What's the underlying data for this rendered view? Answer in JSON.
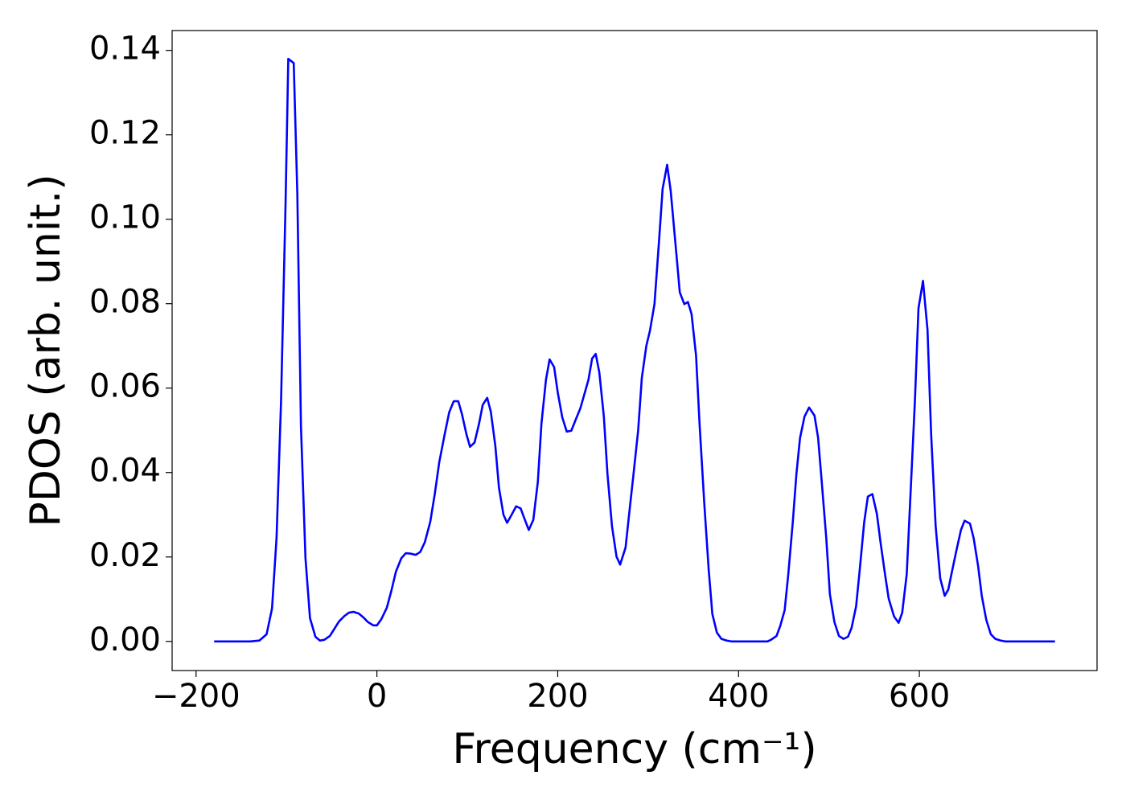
{
  "chart_data": {
    "type": "line",
    "xlabel": "Frequency (cm⁻¹)",
    "ylabel": "PDOS (arb. unit.)",
    "color": "#0000ff",
    "xlim": [
      -226.5,
      796.5
    ],
    "ylim": [
      -0.0069,
      0.1447
    ],
    "xticks": [
      {
        "value": -200,
        "label": "−200"
      },
      0,
      200,
      400,
      600
    ],
    "yticks": [
      {
        "value": 0,
        "label": "0.00"
      },
      {
        "value": 0.02,
        "label": "0.02"
      },
      {
        "value": 0.04,
        "label": "0.04"
      },
      {
        "value": 0.06,
        "label": "0.06"
      },
      {
        "value": 0.08,
        "label": "0.08"
      },
      {
        "value": 0.1,
        "label": "0.10"
      },
      {
        "value": 0.12,
        "label": "0.12"
      },
      {
        "value": 0.14,
        "label": "0.14"
      }
    ],
    "grid": false,
    "x": [
      -180,
      -170,
      -160,
      -150,
      -140,
      -130,
      -122,
      -116,
      -111,
      -106,
      -101,
      -98,
      -92,
      -88,
      -84,
      -79,
      -74,
      -68,
      -63,
      -58,
      -52,
      -47,
      -42,
      -36,
      -31,
      -26,
      -20,
      -15,
      -10,
      -4,
      0,
      5,
      11,
      16,
      21,
      27,
      32,
      37,
      43,
      48,
      53,
      59,
      64,
      69,
      75,
      80,
      85,
      90,
      94,
      99,
      103,
      108,
      113,
      117,
      122,
      126,
      131,
      135,
      140,
      144,
      149,
      154,
      159,
      164,
      168,
      173,
      178,
      182,
      187,
      191,
      196,
      200,
      205,
      210,
      215,
      220,
      225,
      229,
      234,
      238,
      242,
      246,
      251,
      255,
      260,
      265,
      269,
      275,
      279,
      284,
      289,
      293,
      298,
      302,
      307,
      312,
      316,
      321,
      325,
      330,
      335,
      340,
      344,
      348,
      353,
      357,
      362,
      367,
      371,
      376,
      381,
      387,
      392,
      410,
      432,
      436,
      442,
      446,
      451,
      455,
      460,
      464,
      468,
      473,
      478,
      484,
      488,
      492,
      497,
      501,
      506,
      511,
      516,
      521,
      525,
      530,
      534,
      539,
      543,
      548,
      553,
      557,
      562,
      566,
      572,
      577,
      581,
      586,
      590,
      595,
      599,
      604,
      609,
      613,
      618,
      623,
      628,
      632,
      636,
      641,
      646,
      650,
      656,
      660,
      665,
      669,
      674,
      679,
      684,
      690,
      695,
      720,
      750
    ],
    "values": [
      0,
      0,
      0,
      0,
      0,
      0.0002,
      0.0017,
      0.0078,
      0.0245,
      0.057,
      0.104,
      0.138,
      0.137,
      0.106,
      0.051,
      0.0197,
      0.0055,
      0.0011,
      0.0002,
      0.0004,
      0.0013,
      0.003,
      0.0047,
      0.006,
      0.0068,
      0.007,
      0.0066,
      0.0057,
      0.0046,
      0.0038,
      0.0038,
      0.0053,
      0.008,
      0.012,
      0.0165,
      0.0197,
      0.0209,
      0.0208,
      0.0205,
      0.0212,
      0.0235,
      0.0283,
      0.0349,
      0.0425,
      0.0491,
      0.0543,
      0.0569,
      0.0569,
      0.0539,
      0.0491,
      0.0461,
      0.0471,
      0.0516,
      0.056,
      0.0577,
      0.0544,
      0.0463,
      0.0364,
      0.03,
      0.0281,
      0.03,
      0.032,
      0.0315,
      0.0286,
      0.0264,
      0.0288,
      0.0378,
      0.0516,
      0.062,
      0.0668,
      0.065,
      0.059,
      0.0531,
      0.0497,
      0.0499,
      0.0526,
      0.0552,
      0.0582,
      0.062,
      0.067,
      0.0681,
      0.0637,
      0.0533,
      0.0397,
      0.0273,
      0.0201,
      0.0182,
      0.0222,
      0.0302,
      0.04,
      0.0501,
      0.0624,
      0.07,
      0.0736,
      0.0799,
      0.0947,
      0.1072,
      0.1129,
      0.1066,
      0.0947,
      0.0827,
      0.0799,
      0.0804,
      0.0776,
      0.0677,
      0.051,
      0.033,
      0.0169,
      0.0065,
      0.0021,
      0.0006,
      0.0002,
      0,
      0,
      0,
      0.0004,
      0.0013,
      0.0036,
      0.0074,
      0.0159,
      0.0283,
      0.0397,
      0.0482,
      0.0533,
      0.0554,
      0.0535,
      0.0482,
      0.0378,
      0.0245,
      0.0112,
      0.0046,
      0.0013,
      0.0006,
      0.0011,
      0.0032,
      0.0083,
      0.0169,
      0.0283,
      0.0343,
      0.0349,
      0.0302,
      0.0235,
      0.0159,
      0.0102,
      0.0059,
      0.0044,
      0.0068,
      0.0159,
      0.034,
      0.0567,
      0.0789,
      0.0854,
      0.0738,
      0.0491,
      0.0273,
      0.015,
      0.0108,
      0.0123,
      0.0165,
      0.0216,
      0.0264,
      0.0286,
      0.0279,
      0.0245,
      0.0178,
      0.0108,
      0.0051,
      0.0017,
      0.0006,
      0.0002,
      0,
      0,
      0
    ]
  }
}
